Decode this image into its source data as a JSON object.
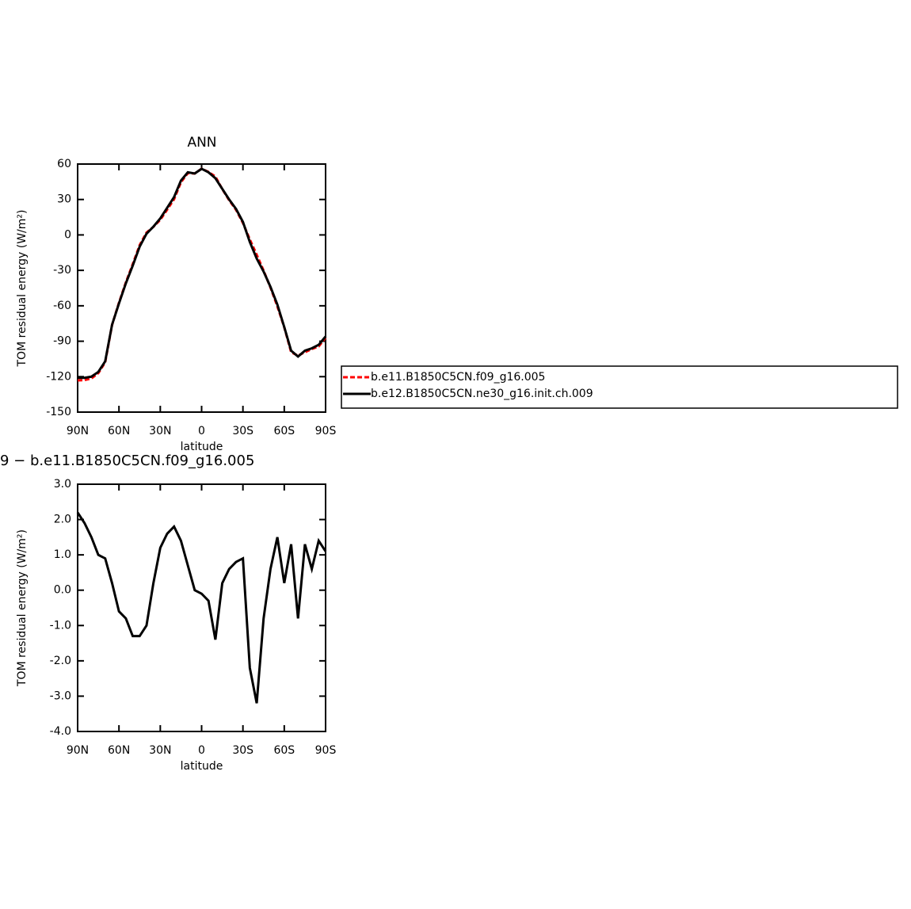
{
  "chart_data": [
    {
      "type": "line",
      "title": "ANN",
      "xlabel": "latitude",
      "ylabel": "TOM residual energy (W/m²)",
      "x": [
        90,
        85,
        80,
        75,
        70,
        65,
        60,
        55,
        50,
        45,
        40,
        35,
        30,
        25,
        20,
        15,
        10,
        5,
        0,
        -5,
        -10,
        -15,
        -20,
        -25,
        -30,
        -35,
        -40,
        -45,
        -50,
        -55,
        -60,
        -65,
        -70,
        -75,
        -80,
        -85,
        -90
      ],
      "series": [
        {
          "name": "b.e11.B1850C5CN.f09_g16.005",
          "color": "#ff0000",
          "style": "dashed",
          "values": [
            -123.2,
            -122.9,
            -121.5,
            -117,
            -107.9,
            -76.2,
            -57.4,
            -40.2,
            -24.7,
            -8.7,
            2,
            6.8,
            12.8,
            21.4,
            30.2,
            44.6,
            52.3,
            52,
            56.1,
            53.3,
            49.4,
            38.8,
            29.4,
            21.2,
            10.1,
            -3.8,
            -16.8,
            -30.2,
            -44.6,
            -60.5,
            -78.2,
            -99.3,
            -102.2,
            -99.3,
            -96.6,
            -94.4,
            -87.1
          ]
        },
        {
          "name": "b.e12.B1850C5CN.ne30_g16.init.ch.009",
          "color": "#000000",
          "style": "solid",
          "values": [
            -121,
            -121,
            -120,
            -116,
            -107,
            -76,
            -58,
            -41,
            -26,
            -10,
            1,
            7,
            14,
            23,
            32,
            46,
            53,
            52,
            56,
            53,
            48,
            39,
            30,
            22,
            11,
            -6,
            -20,
            -31,
            -44,
            -59,
            -78,
            -98,
            -103,
            -98,
            -96,
            -93,
            -86
          ]
        }
      ],
      "legend": "right",
      "xlim": [
        90,
        -90
      ],
      "xticks": [
        {
          "value": 90,
          "label": "90N"
        },
        {
          "value": 60,
          "label": "60N"
        },
        {
          "value": 30,
          "label": "30N"
        },
        0,
        {
          "value": -30,
          "label": "30S"
        },
        {
          "value": -60,
          "label": "60S"
        },
        {
          "value": -90,
          "label": "90S"
        }
      ],
      "ylim": [
        -150,
        60
      ],
      "yticks": [
        60,
        30,
        0,
        -30,
        -60,
        -90,
        -120,
        -150
      ]
    },
    {
      "type": "line",
      "title": "9 − b.e11.B1850C5CN.f09_g16.005",
      "xlabel": "latitude",
      "ylabel": "TOM residual energy (W/m²)",
      "x": [
        90,
        85,
        80,
        75,
        70,
        65,
        60,
        55,
        50,
        45,
        40,
        35,
        30,
        25,
        20,
        15,
        10,
        5,
        0,
        -5,
        -10,
        -15,
        -20,
        -25,
        -30,
        -35,
        -40,
        -45,
        -50,
        -55,
        -60,
        -65,
        -70,
        -75,
        -80,
        -85,
        -90
      ],
      "series": [
        {
          "color": "#000000",
          "style": "solid",
          "values": [
            2.2,
            1.9,
            1.5,
            1.0,
            0.9,
            0.2,
            -0.6,
            -0.8,
            -1.3,
            -1.3,
            -1.0,
            0.2,
            1.2,
            1.6,
            1.8,
            1.4,
            0.7,
            0.0,
            -0.1,
            -0.3,
            -1.4,
            0.2,
            0.6,
            0.8,
            0.9,
            -2.2,
            -3.2,
            -0.8,
            0.6,
            1.5,
            0.2,
            1.3,
            -0.8,
            1.3,
            0.6,
            1.4,
            1.1
          ]
        }
      ],
      "xlim": [
        90,
        -90
      ],
      "xticks": [
        {
          "value": 90,
          "label": "90N"
        },
        {
          "value": 60,
          "label": "60N"
        },
        {
          "value": 30,
          "label": "30N"
        },
        0,
        {
          "value": -30,
          "label": "30S"
        },
        {
          "value": -60,
          "label": "60S"
        },
        {
          "value": -90,
          "label": "90S"
        }
      ],
      "ylim": [
        -4,
        3
      ],
      "yticks": [
        {
          "value": 3,
          "label": "3.0"
        },
        {
          "value": 2,
          "label": "2.0"
        },
        {
          "value": 1,
          "label": "1.0"
        },
        {
          "value": 0,
          "label": "0.0"
        },
        {
          "value": -1,
          "label": "-1.0"
        },
        {
          "value": -2,
          "label": "-2.0"
        },
        {
          "value": -3,
          "label": "-3.0"
        },
        {
          "value": -4,
          "label": "-4.0"
        }
      ]
    }
  ]
}
